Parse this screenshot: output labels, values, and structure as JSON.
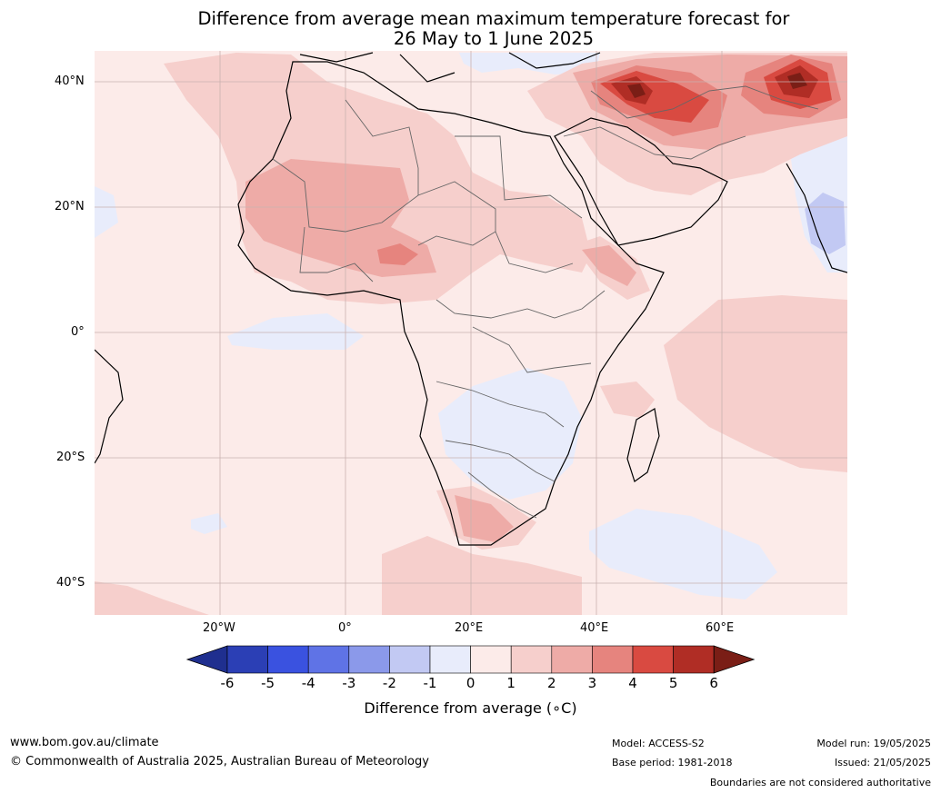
{
  "title_line1": "Difference from average mean maximum temperature forecast for",
  "title_line2": "26 May to 1 June 2025",
  "lat_labels": [
    "40°N",
    "20°N",
    "0°",
    "20°S",
    "40°S"
  ],
  "lon_labels": [
    "20°W",
    "0°",
    "20°E",
    "40°E",
    "60°E"
  ],
  "legend": {
    "ticks": [
      "-6",
      "-5",
      "-4",
      "-3",
      "-2",
      "-1",
      "0",
      "1",
      "2",
      "3",
      "4",
      "5",
      "6"
    ],
    "title": "Difference from average (",
    "title_unit": "∘C)",
    "colors": [
      "#1f2f8f",
      "#2b3fb5",
      "#3a52e0",
      "#5f73e6",
      "#8b99ea",
      "#c2c9f3",
      "#e8ecfb",
      "#fcebe9",
      "#f6cfcc",
      "#eeaba7",
      "#e6847e",
      "#d94a41",
      "#b02d25",
      "#7a1e16"
    ]
  },
  "footer": {
    "url": "www.bom.gov.au/climate",
    "copyright": "© Commonwealth of Australia 2025, Australian Bureau of Meteorology",
    "model": "Model: ACCESS-S2",
    "base_period": "Base period: 1981-2018",
    "model_run": "Model run: 19/05/2025",
    "issued": "Issued: 21/05/2025",
    "disclaimer": "Boundaries are not considered authoritative"
  }
}
